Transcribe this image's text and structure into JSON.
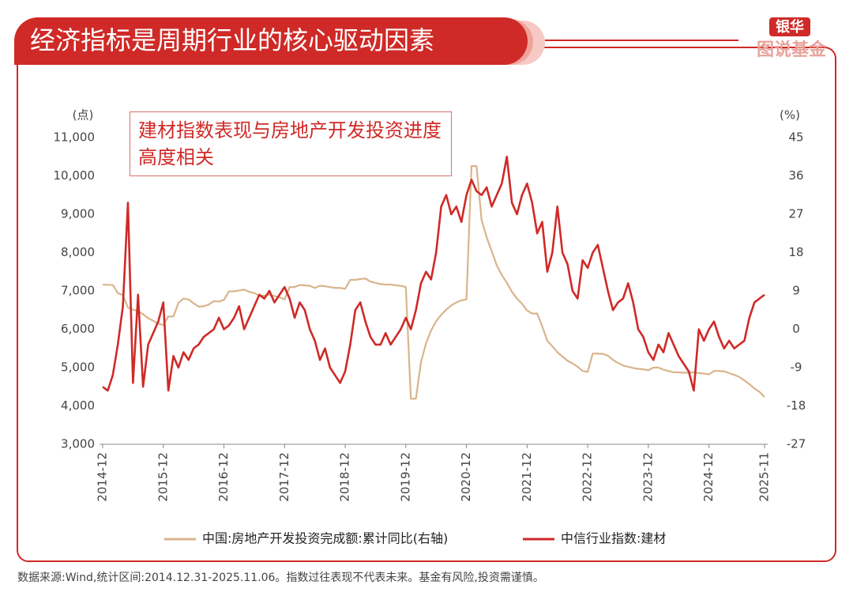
{
  "header": {
    "title": "经济指标是周期行业的核心驱动因素",
    "logo_top": "银华",
    "logo_bottom": "图说基金"
  },
  "chart_data": {
    "type": "line",
    "annotation": "建材指数表现与房地产开发投资进度高度相关",
    "y_unit": "(点)",
    "y2_unit": "(%)",
    "x": [
      "2014-12",
      "2015-01",
      "2015-02",
      "2015-03",
      "2015-04",
      "2015-05",
      "2015-06",
      "2015-07",
      "2015-08",
      "2015-09",
      "2015-10",
      "2015-11",
      "2015-12",
      "2016-01",
      "2016-02",
      "2016-03",
      "2016-04",
      "2016-05",
      "2016-06",
      "2016-07",
      "2016-08",
      "2016-09",
      "2016-10",
      "2016-11",
      "2016-12",
      "2017-01",
      "2017-02",
      "2017-03",
      "2017-04",
      "2017-05",
      "2017-06",
      "2017-07",
      "2017-08",
      "2017-09",
      "2017-10",
      "2017-11",
      "2017-12",
      "2018-01",
      "2018-02",
      "2018-03",
      "2018-04",
      "2018-05",
      "2018-06",
      "2018-07",
      "2018-08",
      "2018-09",
      "2018-10",
      "2018-11",
      "2018-12",
      "2019-01",
      "2019-02",
      "2019-03",
      "2019-04",
      "2019-05",
      "2019-06",
      "2019-07",
      "2019-08",
      "2019-09",
      "2019-10",
      "2019-11",
      "2019-12",
      "2020-01",
      "2020-02",
      "2020-03",
      "2020-04",
      "2020-05",
      "2020-06",
      "2020-07",
      "2020-08",
      "2020-09",
      "2020-10",
      "2020-11",
      "2020-12",
      "2021-01",
      "2021-02",
      "2021-03",
      "2021-04",
      "2021-05",
      "2021-06",
      "2021-07",
      "2021-08",
      "2021-09",
      "2021-10",
      "2021-11",
      "2021-12",
      "2022-01",
      "2022-02",
      "2022-03",
      "2022-04",
      "2022-05",
      "2022-06",
      "2022-07",
      "2022-08",
      "2022-09",
      "2022-10",
      "2022-11",
      "2022-12",
      "2023-01",
      "2023-02",
      "2023-03",
      "2023-04",
      "2023-05",
      "2023-06",
      "2023-07",
      "2023-08",
      "2023-09",
      "2023-10",
      "2023-11",
      "2023-12",
      "2024-01",
      "2024-02",
      "2024-03",
      "2024-04",
      "2024-05",
      "2024-06",
      "2024-07",
      "2024-08",
      "2024-09",
      "2024-10",
      "2024-11",
      "2024-12",
      "2025-01",
      "2025-02",
      "2025-03",
      "2025-04",
      "2025-05",
      "2025-06",
      "2025-07",
      "2025-08",
      "2025-09",
      "2025-10",
      "2025-11"
    ],
    "xticks": [
      "2014-12",
      "2015-12",
      "2016-12",
      "2017-12",
      "2018-12",
      "2019-12",
      "2020-12",
      "2021-12",
      "2022-12",
      "2023-12",
      "2024-12",
      "2025-11"
    ],
    "ylim": [
      3000,
      11000
    ],
    "yticks": [
      {
        "value": 3000,
        "label": "3,000"
      },
      {
        "value": 4000,
        "label": "4,000"
      },
      {
        "value": 5000,
        "label": "5,000"
      },
      {
        "value": 6000,
        "label": "6,000"
      },
      {
        "value": 7000,
        "label": "7,000"
      },
      {
        "value": 8000,
        "label": "8,000"
      },
      {
        "value": 9000,
        "label": "9,000"
      },
      {
        "value": 10000,
        "label": "10,000"
      },
      {
        "value": 11000,
        "label": "11,000"
      }
    ],
    "y2lim": [
      -27,
      45
    ],
    "y2ticks": [
      -27,
      -18,
      -9,
      0,
      9,
      18,
      27,
      36,
      45
    ],
    "grid": false,
    "series": [
      {
        "name": "中国:房地产开发投资完成额:累计同比(右轴)",
        "color": "#d9b48c",
        "axis": "y2",
        "values": [
          10.5,
          10.4,
          10.4,
          8.5,
          8.0,
          5.1,
          4.6,
          4.3,
          3.5,
          2.6,
          2.0,
          1.3,
          1.0,
          3.0,
          3.0,
          6.2,
          7.2,
          7.0,
          6.1,
          5.3,
          5.4,
          5.8,
          6.6,
          6.5,
          6.9,
          8.9,
          8.9,
          9.1,
          9.3,
          8.8,
          8.5,
          7.9,
          7.9,
          8.1,
          7.8,
          7.5,
          7.0,
          9.9,
          9.9,
          10.4,
          10.3,
          10.2,
          9.7,
          10.2,
          10.1,
          9.9,
          9.7,
          9.7,
          9.5,
          11.6,
          11.6,
          11.8,
          11.9,
          11.2,
          10.9,
          10.6,
          10.5,
          10.5,
          10.3,
          10.2,
          9.9,
          -16.3,
          -16.3,
          -7.7,
          -3.3,
          -0.3,
          1.9,
          3.4,
          4.6,
          5.6,
          6.3,
          6.8,
          7.0,
          38.3,
          38.3,
          25.6,
          21.6,
          18.3,
          15.0,
          12.7,
          10.9,
          8.8,
          7.2,
          6.0,
          4.4,
          3.7,
          3.7,
          0.7,
          -2.7,
          -4.0,
          -5.4,
          -6.4,
          -7.4,
          -8.0,
          -8.8,
          -9.8,
          -10.0,
          -5.7,
          -5.7,
          -5.8,
          -6.2,
          -7.2,
          -7.9,
          -8.5,
          -8.8,
          -9.1,
          -9.3,
          -9.4,
          -9.6,
          -9.0,
          -9.0,
          -9.5,
          -9.8,
          -10.1,
          -10.1,
          -10.2,
          -10.2,
          -10.1,
          -10.3,
          -10.4,
          -10.6,
          -9.8,
          -9.8,
          -9.9,
          -10.3,
          -10.7,
          -11.2,
          -12.0,
          -12.9,
          -13.9,
          -14.7,
          -15.9
        ]
      },
      {
        "name": "中信行业指数:建材",
        "color": "#cf2a27",
        "values": [
          4500,
          4400,
          4800,
          5600,
          6600,
          9300,
          4600,
          6900,
          4500,
          5600,
          5900,
          6200,
          6700,
          4400,
          5300,
          5000,
          5400,
          5200,
          5500,
          5600,
          5800,
          5900,
          6000,
          6300,
          6000,
          6100,
          6300,
          6600,
          6000,
          6300,
          6600,
          6900,
          6800,
          7000,
          6700,
          6900,
          7100,
          6800,
          6300,
          6700,
          6500,
          6000,
          5700,
          5200,
          5500,
          5000,
          4800,
          4600,
          4900,
          5600,
          6500,
          6700,
          6200,
          5800,
          5600,
          5600,
          5900,
          5600,
          5800,
          6000,
          6300,
          6000,
          6500,
          7200,
          7500,
          7300,
          8000,
          9200,
          9500,
          9000,
          9200,
          8800,
          9500,
          9900,
          9600,
          9500,
          9700,
          9200,
          9500,
          9800,
          10500,
          9300,
          9000,
          9500,
          9800,
          9300,
          8500,
          8800,
          7500,
          8000,
          9200,
          8000,
          7700,
          7000,
          6800,
          7800,
          7600,
          8000,
          8200,
          7600,
          7000,
          6500,
          6700,
          6800,
          7200,
          6700,
          6000,
          5800,
          5400,
          5200,
          5600,
          5400,
          5900,
          5600,
          5300,
          5100,
          4900,
          4400,
          6000,
          5700,
          6000,
          6200,
          5800,
          5500,
          5700,
          5500,
          5600,
          5700,
          6300,
          6700,
          6800,
          6900
        ]
      }
    ]
  },
  "footer": {
    "source": "数据来源:Wind,统计区间:2014.12.31-2025.11.06。指数过往表现不代表未来。基金有风险,投资需谨慎。"
  }
}
